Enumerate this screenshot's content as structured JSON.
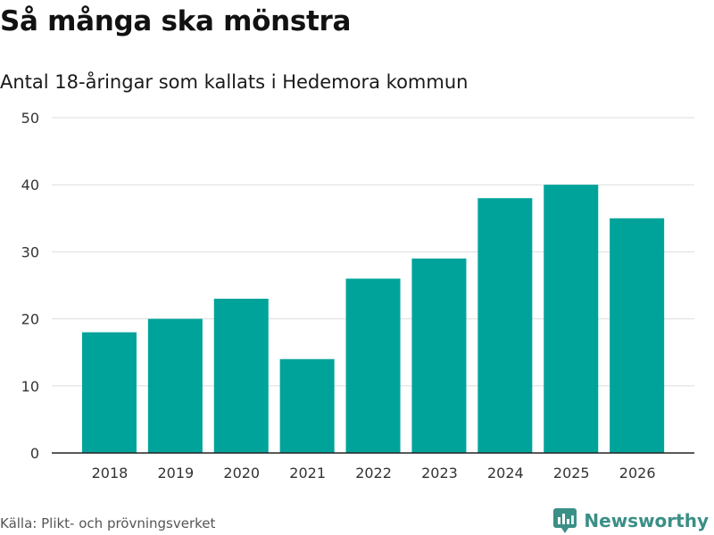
{
  "header": {
    "title": "Så många ska mönstra",
    "subtitle": "Antal 18-åringar som kallats i Hedemora kommun"
  },
  "footer": {
    "source": "Källa: Plikt- och prövningsverket",
    "brand": "Newsworthy"
  },
  "colors": {
    "bar": "#00a39a",
    "grid": "#dddddd",
    "axis": "#222222",
    "brand": "#3a8f86"
  },
  "chart_data": {
    "type": "bar",
    "title": "Så många ska mönstra",
    "subtitle": "Antal 18-åringar som kallats i Hedemora kommun",
    "categories": [
      "2018",
      "2019",
      "2020",
      "2021",
      "2022",
      "2023",
      "2024",
      "2025",
      "2026"
    ],
    "values": [
      18,
      20,
      23,
      14,
      26,
      29,
      38,
      40,
      35
    ],
    "ylim": [
      0,
      50
    ],
    "yticks": [
      0,
      10,
      20,
      30,
      40,
      50
    ],
    "xlabel": "",
    "ylabel": "",
    "grid": true
  }
}
